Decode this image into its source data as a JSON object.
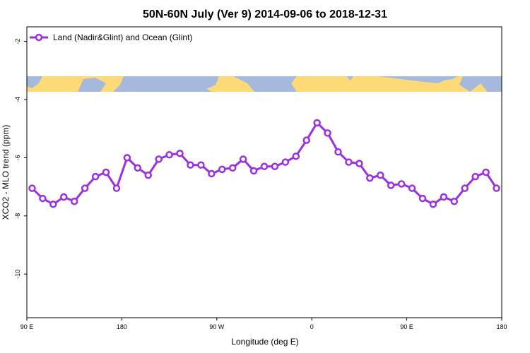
{
  "chart_data": {
    "type": "line",
    "title": "50N-60N July (Ver 9)   2014-09-06 to 2018-12-31",
    "x_label": "Longitude (deg E)",
    "y_label": "XCO2 - MLO trend (ppm)",
    "x": [
      95,
      105,
      115,
      125,
      135,
      145,
      155,
      165,
      175,
      185,
      195,
      205,
      215,
      225,
      235,
      245,
      255,
      265,
      275,
      285,
      295,
      305,
      315,
      325,
      335,
      345,
      355,
      365,
      375,
      385,
      395,
      405,
      415,
      425,
      435,
      445,
      455,
      465,
      475,
      485,
      495,
      505,
      515,
      525,
      535
    ],
    "series": [
      {
        "name": "Land (Nadir&Glint) and Ocean (Glint)",
        "color": "#9b30e0",
        "values": [
          -7.05,
          -7.4,
          -7.6,
          -7.35,
          -7.5,
          -7.05,
          -6.65,
          -6.5,
          -7.05,
          -6.0,
          -6.35,
          -6.6,
          -6.05,
          -5.9,
          -5.85,
          -6.25,
          -6.25,
          -6.55,
          -6.4,
          -6.35,
          -6.05,
          -6.45,
          -6.3,
          -6.3,
          -6.15,
          -5.95,
          -5.4,
          -4.8,
          -5.15,
          -5.8,
          -6.15,
          -6.2,
          -6.7,
          -6.6,
          -6.95,
          -6.9,
          -7.05,
          -7.4,
          -7.6,
          -7.35,
          -7.5,
          -7.05,
          -6.65,
          -6.5,
          -7.05
        ]
      }
    ],
    "xlim": [
      90,
      540
    ],
    "xticks": [
      {
        "value": 90,
        "label": "90 E"
      },
      {
        "value": 180,
        "label": "180"
      },
      {
        "value": 270,
        "label": "90 W"
      },
      {
        "value": 360,
        "label": "0"
      },
      {
        "value": 450,
        "label": "90 E"
      },
      {
        "value": 540,
        "label": "180"
      }
    ],
    "ylim": [
      -11.5,
      -1.5
    ],
    "yticks": [
      -2,
      -4,
      -6,
      -8,
      -10
    ],
    "legend": "top-left"
  }
}
